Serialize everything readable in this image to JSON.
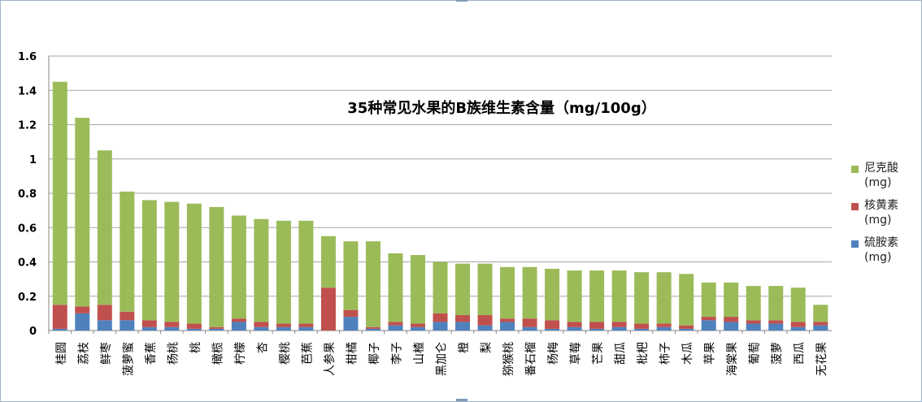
{
  "chart_data": {
    "type": "bar",
    "stacked": true,
    "title": "35种常见水果的B族维生素含量（mg/100g）",
    "ylim": [
      0,
      1.6
    ],
    "yticks": [
      "0",
      "0.2",
      "0.4",
      "0.6",
      "0.8",
      "1",
      "1.2",
      "1.4",
      "1.6"
    ],
    "grid": true,
    "legend_position": "right",
    "categories": [
      "桂圆",
      "荔枝",
      "鲜枣",
      "菠萝蜜",
      "香蕉",
      "杨桃",
      "桃",
      "橄榄",
      "柠檬",
      "杏",
      "樱桃",
      "芭蕉",
      "人参果",
      "柑橘",
      "椰子",
      "李子",
      "山楂",
      "黑加仑",
      "橙",
      "梨",
      "猕猴桃",
      "番石榴",
      "杨梅",
      "草莓",
      "芒果",
      "甜瓜",
      "枇杷",
      "柿子",
      "木瓜",
      "苹果",
      "海棠果",
      "葡萄",
      "菠萝",
      "西瓜",
      "无花果"
    ],
    "series": [
      {
        "name": "硫胺素",
        "unit": "(mg)",
        "color": "#4f81bd",
        "values": [
          0.01,
          0.1,
          0.06,
          0.06,
          0.02,
          0.02,
          0.01,
          0.01,
          0.05,
          0.02,
          0.02,
          0.02,
          0.0,
          0.08,
          0.01,
          0.03,
          0.02,
          0.05,
          0.05,
          0.03,
          0.05,
          0.02,
          0.01,
          0.02,
          0.01,
          0.02,
          0.01,
          0.02,
          0.01,
          0.06,
          0.05,
          0.04,
          0.04,
          0.02,
          0.03
        ]
      },
      {
        "name": "核黄素",
        "unit": "(mg)",
        "color": "#c0504d",
        "values": [
          0.14,
          0.04,
          0.09,
          0.05,
          0.04,
          0.03,
          0.03,
          0.01,
          0.02,
          0.03,
          0.02,
          0.02,
          0.25,
          0.04,
          0.01,
          0.02,
          0.02,
          0.05,
          0.04,
          0.06,
          0.02,
          0.05,
          0.05,
          0.03,
          0.04,
          0.03,
          0.03,
          0.02,
          0.02,
          0.02,
          0.03,
          0.02,
          0.02,
          0.03,
          0.02
        ]
      },
      {
        "name": "尼克酸",
        "unit": "(mg)",
        "color": "#9bbb59",
        "values": [
          1.3,
          1.1,
          0.9,
          0.7,
          0.7,
          0.7,
          0.7,
          0.7,
          0.6,
          0.6,
          0.6,
          0.6,
          0.3,
          0.4,
          0.5,
          0.4,
          0.4,
          0.3,
          0.3,
          0.3,
          0.3,
          0.3,
          0.3,
          0.3,
          0.3,
          0.3,
          0.3,
          0.3,
          0.3,
          0.2,
          0.2,
          0.2,
          0.2,
          0.2,
          0.1
        ]
      }
    ]
  }
}
